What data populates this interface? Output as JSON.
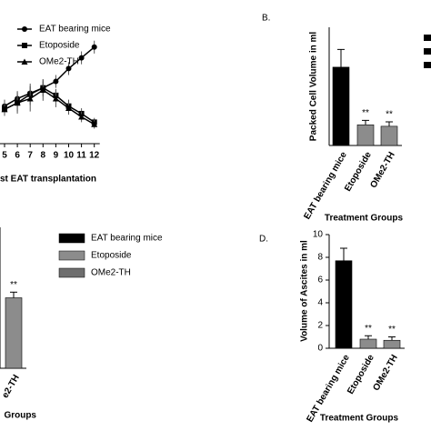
{
  "chart_data": [
    {
      "type": "line",
      "x": [
        5,
        6,
        7,
        8,
        9,
        10,
        11,
        12
      ],
      "xlabel": "st EAT transplantation",
      "ylim": [
        0,
        100
      ],
      "series": [
        {
          "name": "EAT bearing mice",
          "color": "#000000",
          "marker": "circle",
          "values": [
            35,
            42,
            47,
            52,
            58,
            70,
            80,
            90
          ],
          "errors": [
            6,
            7,
            6,
            6,
            6,
            6,
            6,
            6
          ]
        },
        {
          "name": "Etoposide",
          "color": "#000000",
          "marker": "square",
          "values": [
            32,
            38,
            46,
            52,
            45,
            35,
            28,
            20
          ],
          "errors": [
            6,
            8,
            10,
            8,
            6,
            6,
            5,
            4
          ]
        },
        {
          "name": "OMe2-TH",
          "color": "#000000",
          "marker": "triangle",
          "values": [
            32,
            38,
            42,
            50,
            42,
            33,
            25,
            18
          ],
          "errors": [
            6,
            10,
            12,
            10,
            8,
            6,
            5,
            4
          ]
        }
      ]
    },
    {
      "type": "bar",
      "title": "B.",
      "ylabel": "Packed Cell Volume in ml",
      "xlabel": "Treatment Groups",
      "categories": [
        "EAT bearing mice",
        "Etoposide",
        "OMe2-TH"
      ],
      "values": [
        5.3,
        1.4,
        1.3
      ],
      "errors": [
        1.2,
        0.3,
        0.3
      ],
      "annotations": [
        null,
        "**",
        "**"
      ],
      "colors": [
        "#000000",
        "#8c8c8c",
        "#8c8c8c"
      ],
      "ylim": [
        0,
        8
      ]
    },
    {
      "type": "bar",
      "xlabel": "Groups",
      "categories": [
        "e2-TH"
      ],
      "values": [
        2.5
      ],
      "errors": [
        0.2
      ],
      "annotations": [
        "**"
      ],
      "colors": [
        "#8c8c8c"
      ],
      "ylim": [
        0,
        5
      ],
      "legend": [
        {
          "name": "EAT bearing mice",
          "color": "#000000"
        },
        {
          "name": "Etoposide",
          "color": "#8c8c8c"
        },
        {
          "name": "OMe2-TH",
          "color": "#6e6e6e"
        }
      ]
    },
    {
      "type": "bar",
      "title": "D.",
      "ylabel": "Volume of Ascites in ml",
      "xlabel": "Treatment Groups",
      "categories": [
        "EAT bearing mice",
        "Etoposide",
        "OMe2-TH"
      ],
      "values": [
        7.7,
        0.8,
        0.7
      ],
      "errors": [
        1.1,
        0.3,
        0.3
      ],
      "annotations": [
        null,
        "**",
        "**"
      ],
      "colors": [
        "#000000",
        "#8c8c8c",
        "#8c8c8c"
      ],
      "ylim": [
        0,
        10
      ],
      "yticks": [
        0,
        2,
        4,
        6,
        8,
        10
      ]
    }
  ]
}
